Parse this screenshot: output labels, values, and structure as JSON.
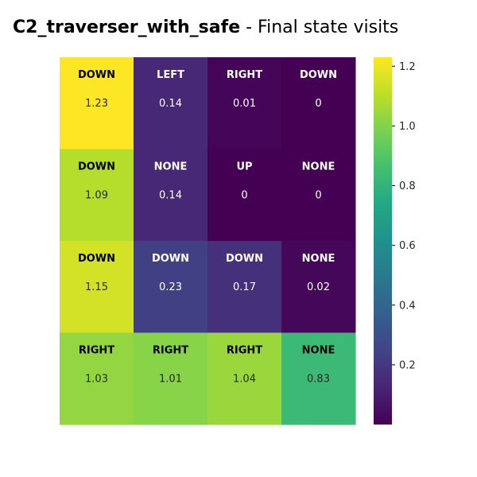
{
  "chart_data": {
    "type": "heatmap",
    "title_bold": "C2_traverser_with_safe",
    "title_rest": " - Final state visits",
    "rows": 4,
    "cols": 4,
    "actions": [
      [
        "DOWN",
        "LEFT",
        "RIGHT",
        "DOWN"
      ],
      [
        "DOWN",
        "NONE",
        "UP",
        "NONE"
      ],
      [
        "DOWN",
        "DOWN",
        "DOWN",
        "NONE"
      ],
      [
        "RIGHT",
        "RIGHT",
        "RIGHT",
        "NONE"
      ]
    ],
    "values": [
      [
        1.23,
        0.14,
        0.01,
        0
      ],
      [
        1.09,
        0.14,
        0,
        0
      ],
      [
        1.15,
        0.23,
        0.17,
        0.02
      ],
      [
        1.03,
        1.01,
        1.04,
        0.83
      ]
    ],
    "colorbar": {
      "colormap": "viridis",
      "vmin": 0,
      "vmax": 1.23,
      "ticks": [
        0.2,
        0.4,
        0.6,
        0.8,
        1.0,
        1.2
      ],
      "tick_labels": [
        "0.2",
        "0.4",
        "0.6",
        "0.8",
        "1.0",
        "1.2"
      ]
    }
  }
}
